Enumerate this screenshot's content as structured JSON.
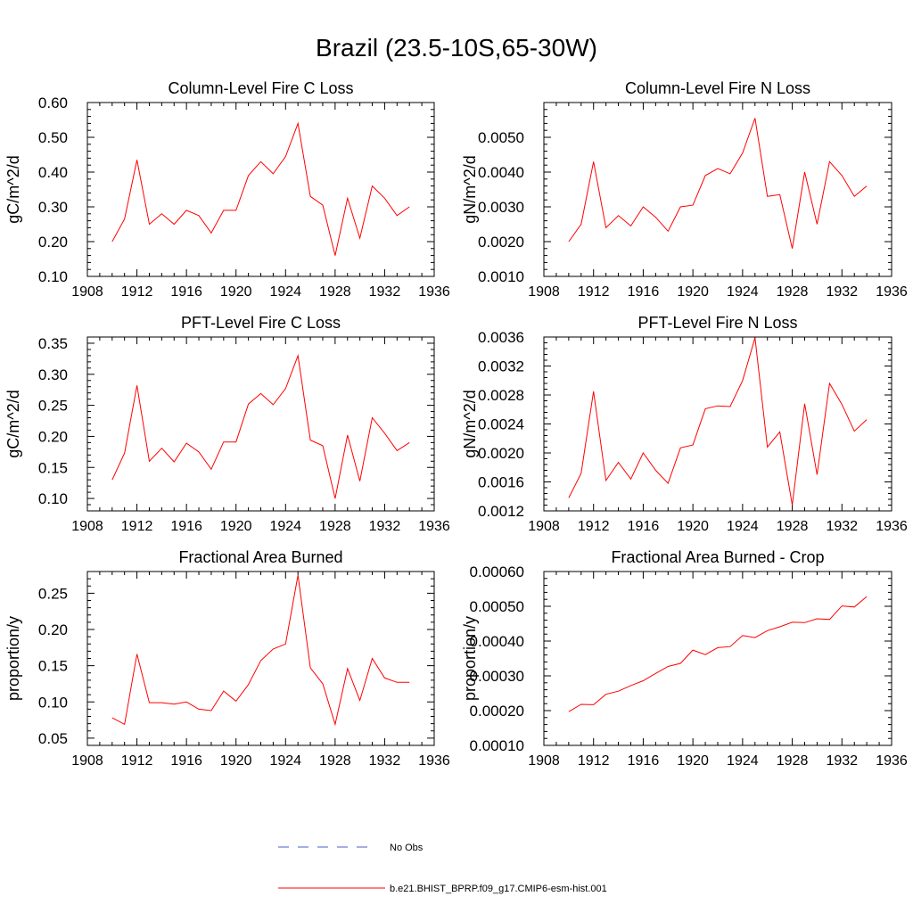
{
  "title": "Brazil (23.5-10S,65-30W)",
  "colors": {
    "model_line": "#ff0000",
    "obs_line": "#4a5fc1",
    "axis": "#000000"
  },
  "legend": {
    "obs_label": "No Obs",
    "model_label": "b.e21.BHIST_BPRP.f09_g17.CMIP6-esm-hist.001"
  },
  "chart_data": [
    {
      "type": "line",
      "title": "Column-Level Fire C Loss",
      "ylabel": "gC/m^2/d",
      "xlim": [
        1908,
        1936
      ],
      "ylim": [
        0.1,
        0.6
      ],
      "xticks": [
        "1908",
        "1912",
        "1916",
        "1920",
        "1924",
        "1928",
        "1932",
        "1936"
      ],
      "yticks": [
        "0.10",
        "0.20",
        "0.30",
        "0.40",
        "0.50",
        "0.60"
      ],
      "series": [
        {
          "name": "b.e21.BHIST_BPRP.f09_g17.CMIP6-esm-hist.001",
          "x": [
            1910,
            1911,
            1912,
            1913,
            1914,
            1915,
            1916,
            1917,
            1918,
            1919,
            1920,
            1921,
            1922,
            1923,
            1924,
            1925,
            1926,
            1927,
            1928,
            1929,
            1930,
            1931,
            1932,
            1933,
            1934
          ],
          "y": [
            0.2,
            0.265,
            0.435,
            0.25,
            0.28,
            0.25,
            0.29,
            0.275,
            0.225,
            0.29,
            0.29,
            0.39,
            0.43,
            0.395,
            0.445,
            0.54,
            0.33,
            0.305,
            0.16,
            0.325,
            0.21,
            0.36,
            0.325,
            0.275,
            0.3
          ]
        }
      ]
    },
    {
      "type": "line",
      "title": "Column-Level Fire N Loss",
      "ylabel": "gN/m^2/d",
      "xlim": [
        1908,
        1936
      ],
      "ylim": [
        0.001,
        0.006
      ],
      "xticks": [
        "1908",
        "1912",
        "1916",
        "1920",
        "1924",
        "1928",
        "1932",
        "1936"
      ],
      "yticks": [
        "0.0010",
        "0.0020",
        "0.0030",
        "0.0040",
        "0.0050"
      ],
      "series": [
        {
          "name": "b.e21.BHIST_BPRP.f09_g17.CMIP6-esm-hist.001",
          "x": [
            1910,
            1911,
            1912,
            1913,
            1914,
            1915,
            1916,
            1917,
            1918,
            1919,
            1920,
            1921,
            1922,
            1923,
            1924,
            1925,
            1926,
            1927,
            1928,
            1929,
            1930,
            1931,
            1932,
            1933,
            1934
          ],
          "y": [
            0.002,
            0.0025,
            0.0043,
            0.0024,
            0.00275,
            0.00245,
            0.003,
            0.0027,
            0.0023,
            0.003,
            0.00305,
            0.0039,
            0.0041,
            0.00395,
            0.00455,
            0.00555,
            0.0033,
            0.00335,
            0.0018,
            0.004,
            0.0025,
            0.0043,
            0.0039,
            0.0033,
            0.0036
          ]
        }
      ]
    },
    {
      "type": "line",
      "title": "PFT-Level Fire C Loss",
      "ylabel": "gC/m^2/d",
      "xlim": [
        1908,
        1936
      ],
      "ylim": [
        0.08,
        0.36
      ],
      "xticks": [
        "1908",
        "1912",
        "1916",
        "1920",
        "1924",
        "1928",
        "1932",
        "1936"
      ],
      "yticks": [
        "0.10",
        "0.15",
        "0.20",
        "0.25",
        "0.30",
        "0.35"
      ],
      "series": [
        {
          "name": "b.e21.BHIST_BPRP.f09_g17.CMIP6-esm-hist.001",
          "x": [
            1910,
            1911,
            1912,
            1913,
            1914,
            1915,
            1916,
            1917,
            1918,
            1919,
            1920,
            1921,
            1922,
            1923,
            1924,
            1925,
            1926,
            1927,
            1928,
            1929,
            1930,
            1931,
            1932,
            1933,
            1934
          ],
          "y": [
            0.13,
            0.173,
            0.282,
            0.16,
            0.181,
            0.159,
            0.189,
            0.175,
            0.147,
            0.191,
            0.191,
            0.252,
            0.269,
            0.251,
            0.277,
            0.33,
            0.194,
            0.185,
            0.1,
            0.202,
            0.128,
            0.23,
            0.205,
            0.177,
            0.19
          ]
        }
      ]
    },
    {
      "type": "line",
      "title": "PFT-Level Fire N Loss",
      "ylabel": "gN/m^2/d",
      "xlim": [
        1908,
        1936
      ],
      "ylim": [
        0.0012,
        0.0036
      ],
      "xticks": [
        "1908",
        "1912",
        "1916",
        "1920",
        "1924",
        "1928",
        "1932",
        "1936"
      ],
      "yticks": [
        "0.0012",
        "0.0016",
        "0.0020",
        "0.0024",
        "0.0028",
        "0.0032",
        "0.0036"
      ],
      "series": [
        {
          "name": "b.e21.BHIST_BPRP.f09_g17.CMIP6-esm-hist.001",
          "x": [
            1910,
            1911,
            1912,
            1913,
            1914,
            1915,
            1916,
            1917,
            1918,
            1919,
            1920,
            1921,
            1922,
            1923,
            1924,
            1925,
            1926,
            1927,
            1928,
            1929,
            1930,
            1931,
            1932,
            1933,
            1934
          ],
          "y": [
            0.00138,
            0.00172,
            0.00285,
            0.00162,
            0.00187,
            0.00164,
            0.002,
            0.00176,
            0.00158,
            0.00207,
            0.00211,
            0.00261,
            0.00265,
            0.00264,
            0.003,
            0.00359,
            0.00208,
            0.00229,
            0.00128,
            0.00268,
            0.0017,
            0.00296,
            0.00267,
            0.0023,
            0.00246
          ]
        }
      ]
    },
    {
      "type": "line",
      "title": "Fractional Area Burned",
      "ylabel": "proportion/y",
      "xlim": [
        1908,
        1936
      ],
      "ylim": [
        0.04,
        0.28
      ],
      "xticks": [
        "1908",
        "1912",
        "1916",
        "1920",
        "1924",
        "1928",
        "1932",
        "1936"
      ],
      "yticks": [
        "0.05",
        "0.10",
        "0.15",
        "0.20",
        "0.25"
      ],
      "series": [
        {
          "name": "b.e21.BHIST_BPRP.f09_g17.CMIP6-esm-hist.001",
          "x": [
            1910,
            1911,
            1912,
            1913,
            1914,
            1915,
            1916,
            1917,
            1918,
            1919,
            1920,
            1921,
            1922,
            1923,
            1924,
            1925,
            1926,
            1927,
            1928,
            1929,
            1930,
            1931,
            1932,
            1933,
            1934
          ],
          "y": [
            0.078,
            0.069,
            0.166,
            0.099,
            0.099,
            0.097,
            0.1,
            0.09,
            0.088,
            0.115,
            0.101,
            0.124,
            0.157,
            0.173,
            0.18,
            0.275,
            0.147,
            0.125,
            0.069,
            0.146,
            0.102,
            0.16,
            0.133,
            0.127,
            0.127
          ]
        }
      ]
    },
    {
      "type": "line",
      "title": "Fractional Area Burned - Crop",
      "ylabel": "proportion/y",
      "xlim": [
        1908,
        1936
      ],
      "ylim": [
        0.0001,
        0.0006
      ],
      "xticks": [
        "1908",
        "1912",
        "1916",
        "1920",
        "1924",
        "1928",
        "1932",
        "1936"
      ],
      "yticks": [
        "0.00010",
        "0.00020",
        "0.00030",
        "0.00040",
        "0.00050",
        "0.00060"
      ],
      "series": [
        {
          "name": "b.e21.BHIST_BPRP.f09_g17.CMIP6-esm-hist.001",
          "x": [
            1910,
            1911,
            1912,
            1913,
            1914,
            1915,
            1916,
            1917,
            1918,
            1919,
            1920,
            1921,
            1922,
            1923,
            1924,
            1925,
            1926,
            1927,
            1928,
            1929,
            1930,
            1931,
            1932,
            1933,
            1934
          ],
          "y": [
            0.000197,
            0.000218,
            0.000217,
            0.000247,
            0.000256,
            0.000272,
            0.000286,
            0.000307,
            0.000327,
            0.000336,
            0.000374,
            0.000361,
            0.000381,
            0.000384,
            0.000416,
            0.00041,
            0.00043,
            0.000441,
            0.000454,
            0.000453,
            0.000464,
            0.000462,
            0.000501,
            0.000498,
            0.000528
          ]
        }
      ]
    }
  ]
}
